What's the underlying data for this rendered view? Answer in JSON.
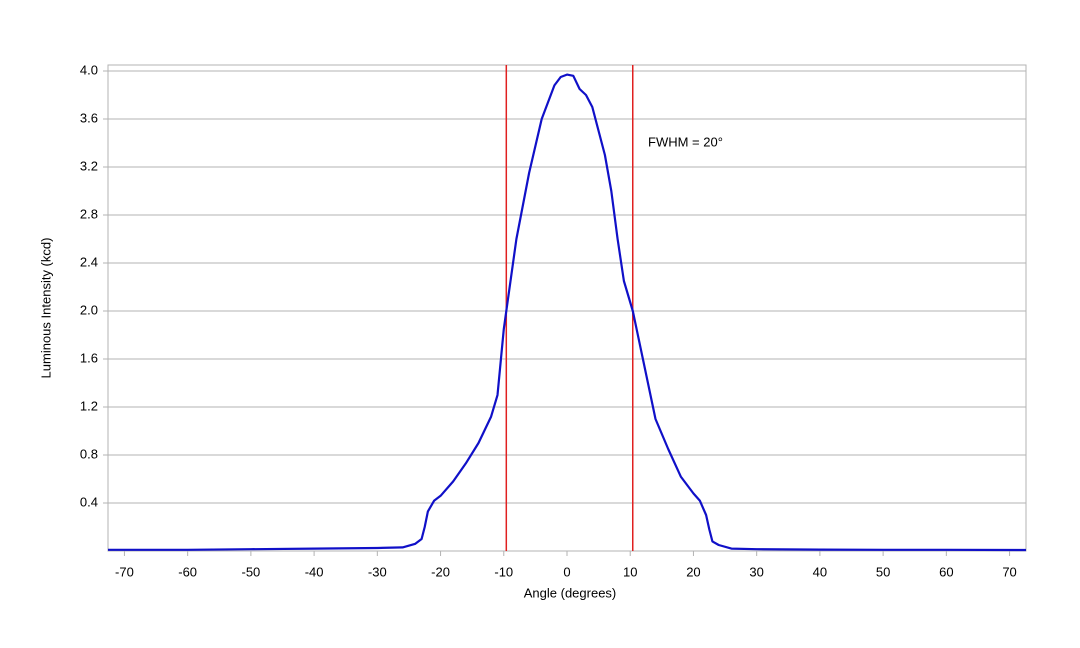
{
  "chart_data": {
    "type": "line",
    "xlabel": "Angle (degrees)",
    "ylabel": "Luminous Intensity (kcd)",
    "annotation": "FWHM = 20°",
    "xlim": [
      -72.6,
      72.6
    ],
    "ylim": [
      0,
      4.05
    ],
    "xticks": [
      -70,
      -60,
      -50,
      -40,
      -30,
      -20,
      -10,
      0,
      10,
      20,
      30,
      40,
      50,
      60,
      70
    ],
    "yticks": [
      0.4,
      0.8,
      1.2,
      1.6,
      {
        "value": 2,
        "label": "2.0"
      },
      2.4,
      2.8,
      3.2,
      3.6,
      {
        "value": 4,
        "label": "4.0"
      }
    ],
    "grid": true,
    "vlines": [
      -9.6,
      10.4
    ],
    "vline_color": "#e02020",
    "series": [
      {
        "color": "#1010c8",
        "x": [
          -72.6,
          -60,
          -50,
          -40,
          -30,
          -26,
          -24,
          -23,
          -22.5,
          -22,
          -21,
          -20,
          -18,
          -16,
          -14,
          -12,
          -11,
          -10,
          -9.6,
          -8,
          -6,
          -4,
          -2,
          -1,
          0,
          1,
          2,
          3,
          4,
          5,
          6,
          7,
          8,
          9,
          10.4,
          12,
          14,
          16,
          18,
          20,
          21,
          22,
          22.5,
          23,
          24,
          26,
          30,
          40,
          50,
          60,
          72.6
        ],
        "y": [
          0.01,
          0.01,
          0.015,
          0.02,
          0.025,
          0.03,
          0.06,
          0.1,
          0.2,
          0.33,
          0.42,
          0.46,
          0.58,
          0.73,
          0.9,
          1.12,
          1.3,
          1.85,
          2.0,
          2.6,
          3.15,
          3.6,
          3.88,
          3.95,
          3.97,
          3.96,
          3.85,
          3.8,
          3.7,
          3.5,
          3.3,
          3.0,
          2.6,
          2.25,
          2.0,
          1.6,
          1.1,
          0.85,
          0.62,
          0.48,
          0.42,
          0.3,
          0.18,
          0.08,
          0.05,
          0.02,
          0.015,
          0.012,
          0.01,
          0.01,
          0.008
        ]
      }
    ]
  }
}
